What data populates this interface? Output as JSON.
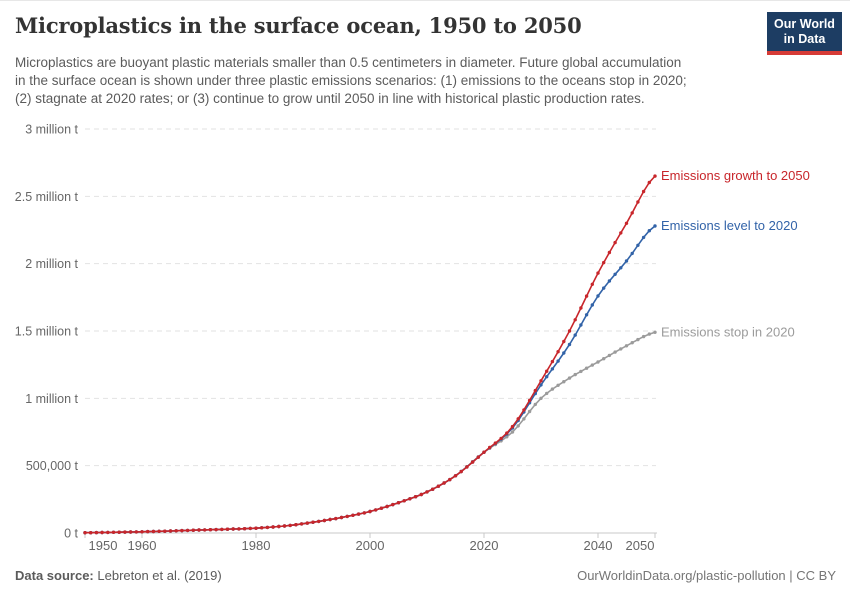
{
  "header": {
    "title": "Microplastics in the surface ocean, 1950 to 2050",
    "subtitle_lines": [
      "Microplastics are buoyant plastic materials smaller than 0.5 centimeters in diameter. Future global accumulation",
      "in the surface ocean is shown under three plastic emissions scenarios: (1) emissions to the oceans stop in 2020;",
      "(2) stagnate at 2020 rates; or (3) continue to grow until 2050 in line with historical plastic production rates."
    ],
    "logo": {
      "line1": "Our World",
      "line2": "in Data",
      "bg_color": "#1d3d63",
      "stripe_color": "#d63b36"
    }
  },
  "footer": {
    "source_label": "Data source:",
    "source_value": "Lebreton et al. (2019)",
    "attribution": "OurWorldinData.org/plastic-pollution | CC BY"
  },
  "chart_data": {
    "type": "line",
    "title": "Microplastics in the surface ocean, 1950 to 2050",
    "unit": "million tonnes",
    "xlim": [
      1950,
      2050
    ],
    "ylim": [
      0,
      3
    ],
    "grid": "horizontal-dashed",
    "legend_position": "right-of-line-ends",
    "markers": "annual-dots",
    "x_ticks": [
      1950,
      1960,
      1980,
      2000,
      2020,
      2040,
      2050
    ],
    "x_tick_labels": [
      "1950",
      "1960",
      "1980",
      "2000",
      "2020",
      "2040",
      "2050"
    ],
    "y_ticks": [
      {
        "value": 0,
        "label": "0 t"
      },
      {
        "value": 0.5,
        "label": "500,000 t"
      },
      {
        "value": 1,
        "label": "1 million t"
      },
      {
        "value": 1.5,
        "label": "1.5 million t"
      },
      {
        "value": 2,
        "label": "2 million t"
      },
      {
        "value": 2.5,
        "label": "2.5 million t"
      },
      {
        "value": 3,
        "label": "3 million t"
      }
    ],
    "x": [
      1950,
      1955,
      1960,
      1965,
      1970,
      1975,
      1980,
      1985,
      1990,
      1995,
      2000,
      2005,
      2010,
      2015,
      2020,
      2025,
      2030,
      2035,
      2040,
      2045,
      2050
    ],
    "series": [
      {
        "name": "Emissions growth to 2050",
        "color": "#c8262b",
        "values": [
          0.002,
          0.005,
          0.009,
          0.015,
          0.022,
          0.028,
          0.036,
          0.052,
          0.08,
          0.115,
          0.16,
          0.225,
          0.305,
          0.425,
          0.6,
          0.79,
          1.13,
          1.5,
          1.93,
          2.3,
          2.65
        ]
      },
      {
        "name": "Emissions level to 2020",
        "color": "#3263a8",
        "values": [
          0.002,
          0.005,
          0.009,
          0.015,
          0.022,
          0.028,
          0.036,
          0.052,
          0.08,
          0.115,
          0.16,
          0.225,
          0.305,
          0.425,
          0.6,
          0.78,
          1.1,
          1.4,
          1.76,
          2.02,
          2.28
        ]
      },
      {
        "name": "Emissions stop in 2020",
        "color": "#9b9b9b",
        "values": [
          0.002,
          0.005,
          0.009,
          0.015,
          0.022,
          0.028,
          0.036,
          0.052,
          0.08,
          0.115,
          0.16,
          0.225,
          0.305,
          0.425,
          0.6,
          0.75,
          1.0,
          1.15,
          1.27,
          1.39,
          1.49
        ]
      }
    ]
  }
}
